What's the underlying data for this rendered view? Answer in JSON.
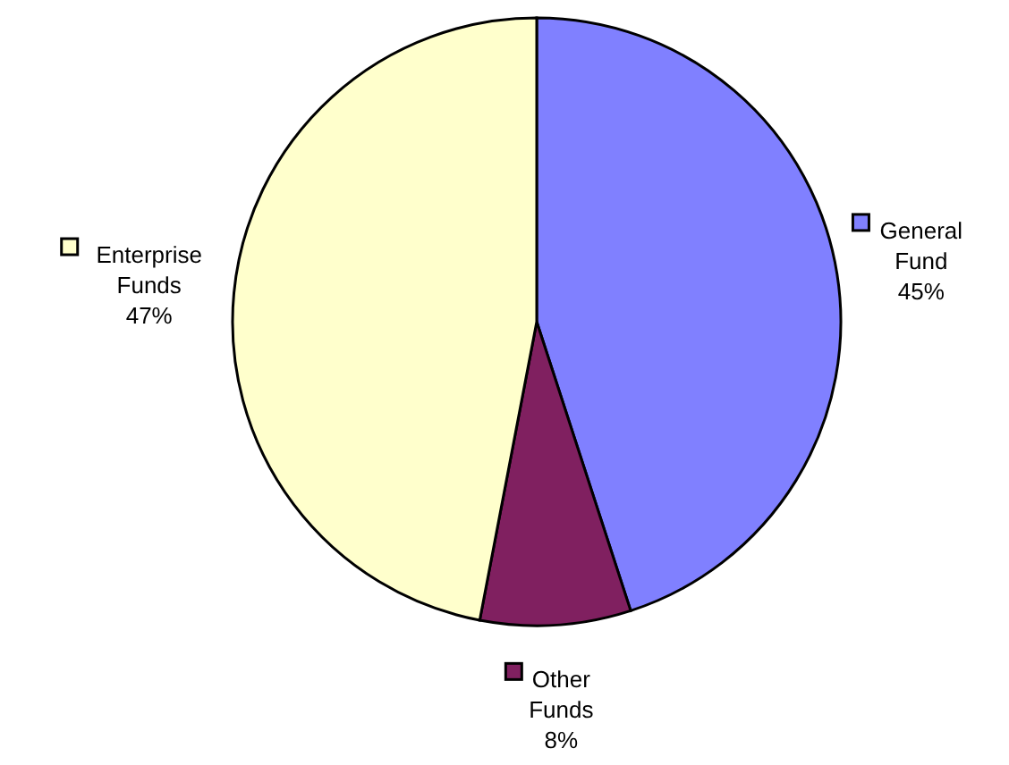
{
  "chart_data": {
    "type": "pie",
    "categories": [
      "General Fund",
      "Other Funds",
      "Enterprise Funds"
    ],
    "values": [
      45,
      8,
      47
    ],
    "colors": [
      "#8080ff",
      "#802060",
      "#ffffcc"
    ],
    "value_labels": [
      "45%",
      "8%",
      "47%"
    ],
    "legend": true
  }
}
